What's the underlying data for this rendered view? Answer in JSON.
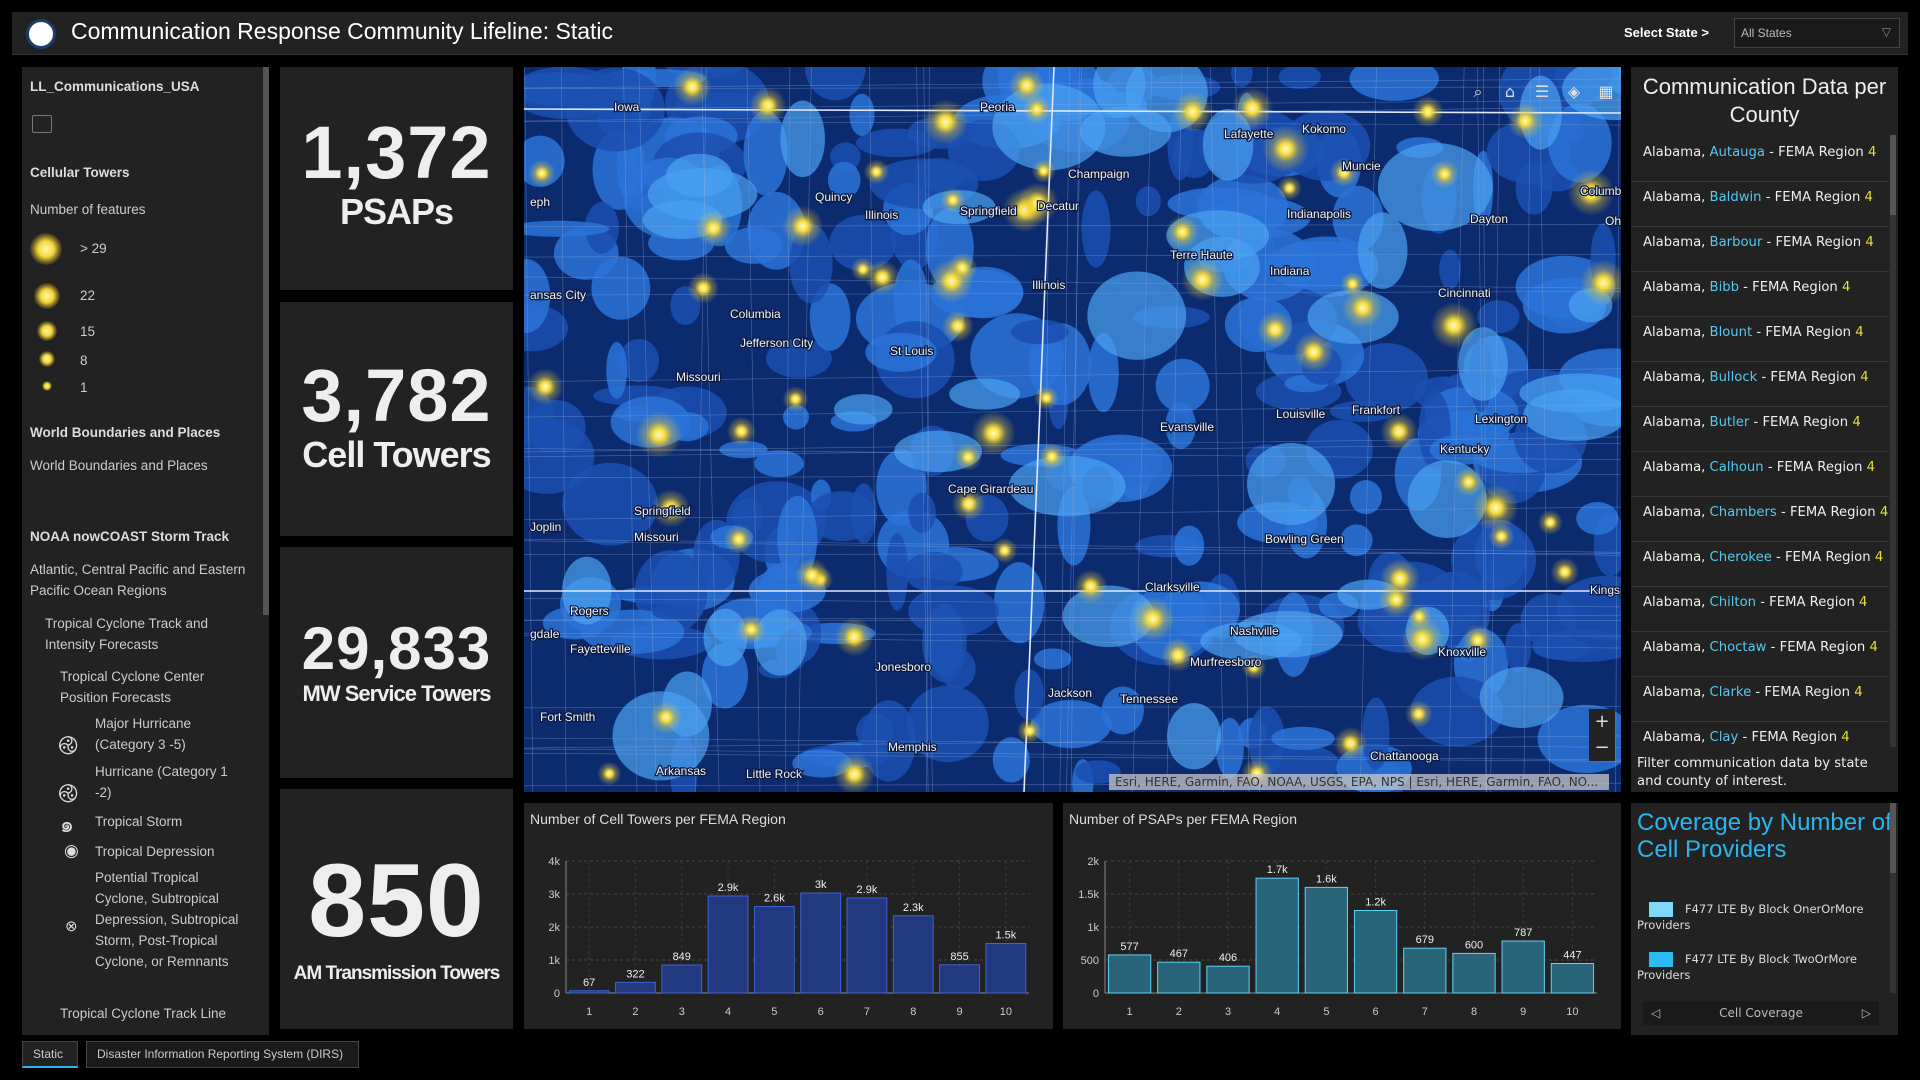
{
  "header": {
    "title": "Communication Response Community Lifeline: Static",
    "select_label": "Select State >",
    "select_value": "All States"
  },
  "left": {
    "layer1": "LL_Communications_USA",
    "sublayer1": "Cellular Towers",
    "legend_title": "Number of features",
    "legend": [
      ">  29",
      "22",
      "15",
      "8",
      "1"
    ],
    "layer2": "World Boundaries and Places",
    "layer2_sub": "World Boundaries and Places",
    "layer3": "NOAA nowCOAST Storm Track",
    "layer3_sub": "Atlantic, Central Pacific and Eastern Pacific Ocean Regions",
    "group1": "Tropical Cyclone Track and Intensity Forecasts",
    "group2": "Tropical Cyclone Center Position Forecasts",
    "storm_items": [
      "Major Hurricane (Category 3 -5)",
      "Hurricane (Category 1 -2)",
      "Tropical Storm",
      "Tropical Depression",
      "Potential Tropical Cyclone, Subtropical Depression, Subtropical Storm, Post-Tropical Cyclone, or Remnants"
    ],
    "group3": "Tropical Cyclone Track Line"
  },
  "stats": [
    {
      "value": "1,372",
      "label": "PSAPs"
    },
    {
      "value": "3,782",
      "label": "Cell Towers"
    },
    {
      "value": "29,833",
      "label": "MW Service Towers"
    },
    {
      "value": "850",
      "label": "AM Transmission Towers"
    }
  ],
  "map": {
    "cities": [
      "Iowa",
      "Peoria",
      "Lafayette",
      "Kokomo",
      "Muncie",
      "Champaign",
      "Quincy",
      "Illinois",
      "Springfield",
      "Decatur",
      "Indianapolis",
      "Dayton",
      "Columbus",
      "Ohio",
      "ansas City",
      "Terre Haute",
      "Indiana",
      "Illinois",
      "Cincinnati",
      "Columbia",
      "Jefferson City",
      "St Louis",
      "Missouri",
      "Frankfort",
      "Louisville",
      "Lexington",
      "Evansville",
      "Kentucky",
      "Cape Girardeau",
      "Springfield",
      "Joplin",
      "Missouri",
      "Bowling Green",
      "Clarksville",
      "Kingsp",
      "Rogers",
      "Nashville",
      "Fayetteville",
      "Knoxville",
      "Jonesboro",
      "Murfreesboro",
      "Tennessee",
      "Jackson",
      "Fort Smith",
      "Memphis",
      "Chattanooga",
      "Arkansas",
      "Little Rock",
      "eph",
      "gdale"
    ],
    "attribution": "Esri, HERE, Garmin, FAO, NOAA, USGS, EPA, NPS | Esri, HERE, Garmin, FAO, NO...",
    "tools": [
      "search-icon",
      "home-icon",
      "legend-icon",
      "layers-icon",
      "basemap-gallery-icon"
    ]
  },
  "charts": [
    {
      "title": "Number of Cell Towers per FEMA Region",
      "type": "bar",
      "categories": [
        "1",
        "2",
        "3",
        "4",
        "5",
        "6",
        "7",
        "8",
        "9",
        "10"
      ],
      "values": [
        67,
        322,
        849,
        2940,
        2620,
        3030,
        2880,
        2340,
        855,
        1500
      ],
      "labels": [
        "67",
        "322",
        "849",
        "2.9k",
        "2.6k",
        "3k",
        "2.9k",
        "2.3k",
        "855",
        "1.5k"
      ],
      "ylim": [
        0,
        4000
      ],
      "yticks": [
        "0",
        "1k",
        "2k",
        "3k",
        "4k"
      ],
      "grid": true,
      "color": "#22387f",
      "stroke": "#3d63d6"
    },
    {
      "title": "Number of PSAPs per FEMA Region",
      "type": "bar",
      "categories": [
        "1",
        "2",
        "3",
        "4",
        "5",
        "6",
        "7",
        "8",
        "9",
        "10"
      ],
      "values": [
        577,
        467,
        406,
        1740,
        1600,
        1250,
        679,
        600,
        787,
        447
      ],
      "labels": [
        "577",
        "467",
        "406",
        "1.7k",
        "1.6k",
        "1.2k",
        "679",
        "600",
        "787",
        "447"
      ],
      "ylim": [
        0,
        2000
      ],
      "yticks": [
        "0",
        "500",
        "1k",
        "1.5k",
        "2k"
      ],
      "grid": true,
      "color": "#2a6479",
      "stroke": "#5fd2f5"
    }
  ],
  "right": {
    "title": "Communication Data per County",
    "rows": [
      {
        "state": "Alabama, ",
        "county": "Autauga",
        "mid": " - FEMA Region ",
        "region": "4"
      },
      {
        "state": "Alabama, ",
        "county": "Baldwin",
        "mid": " - FEMA Region ",
        "region": "4"
      },
      {
        "state": "Alabama, ",
        "county": "Barbour",
        "mid": " - FEMA Region ",
        "region": "4"
      },
      {
        "state": "Alabama, ",
        "county": "Bibb",
        "mid": " - FEMA Region ",
        "region": "4"
      },
      {
        "state": "Alabama, ",
        "county": "Blount",
        "mid": " - FEMA Region ",
        "region": "4"
      },
      {
        "state": "Alabama, ",
        "county": "Bullock",
        "mid": " - FEMA Region ",
        "region": "4"
      },
      {
        "state": "Alabama, ",
        "county": "Butler",
        "mid": " - FEMA Region ",
        "region": "4"
      },
      {
        "state": "Alabama, ",
        "county": "Calhoun",
        "mid": " - FEMA Region ",
        "region": "4"
      },
      {
        "state": "Alabama, ",
        "county": "Chambers",
        "mid": " - FEMA Region ",
        "region": "4"
      },
      {
        "state": "Alabama, ",
        "county": "Cherokee",
        "mid": " - FEMA Region ",
        "region": "4"
      },
      {
        "state": "Alabama, ",
        "county": "Chilton",
        "mid": " - FEMA Region ",
        "region": "4"
      },
      {
        "state": "Alabama, ",
        "county": "Choctaw",
        "mid": " - FEMA Region ",
        "region": "4"
      },
      {
        "state": "Alabama, ",
        "county": "Clarke",
        "mid": " - FEMA Region ",
        "region": "4"
      },
      {
        "state": "Alabama, ",
        "county": "Clay",
        "mid": " - FEMA Region ",
        "region": "4"
      }
    ],
    "footer": "Filter communication data by state and county of interest."
  },
  "coverage": {
    "title": "Coverage by Number of Cell Providers",
    "items": [
      {
        "label": "F477 LTE By Block OnerOrMore Providers",
        "color": "#7fd8f7"
      },
      {
        "label": "F477 LTE By Block TwoOrMore Providers",
        "color": "#2bbcf2"
      }
    ],
    "nav_label": "Cell Coverage"
  },
  "tabs": [
    "Static",
    "Disaster Information Reporting System (DIRS)"
  ],
  "colors": {
    "accent": "#2bb5ef",
    "county": "#59c7f0",
    "region": "#e6df3a"
  }
}
